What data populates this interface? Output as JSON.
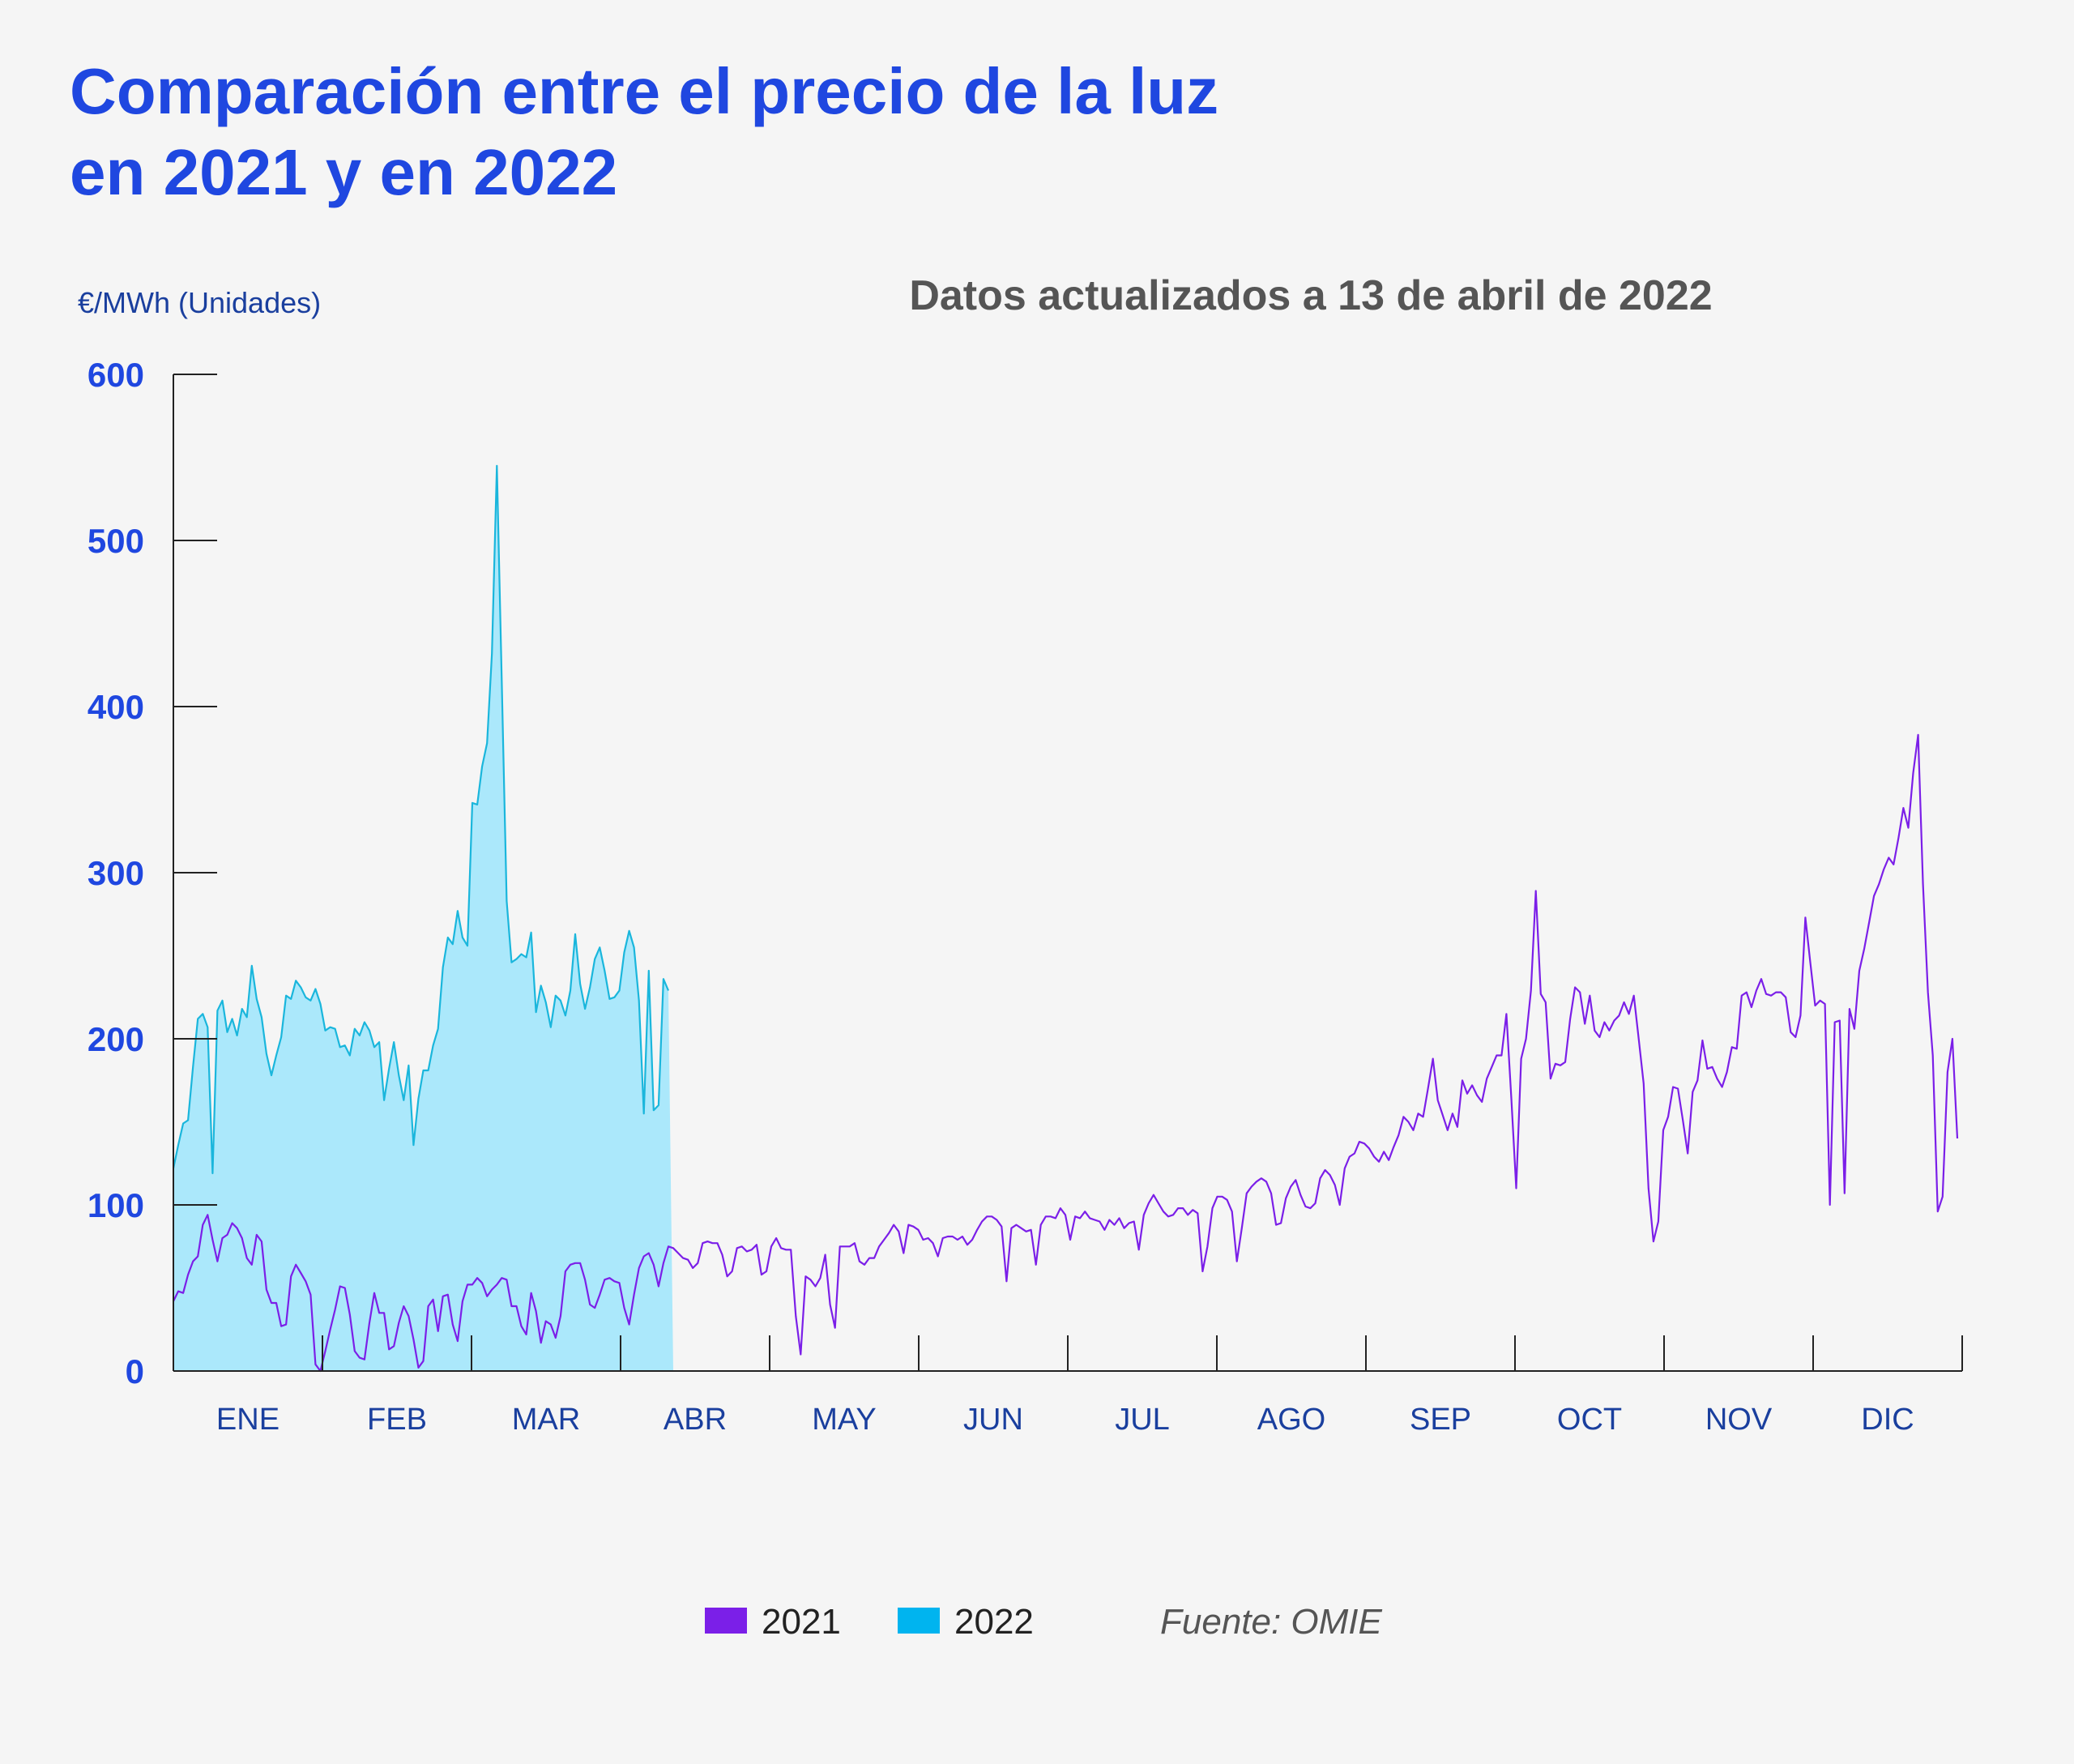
{
  "colors": {
    "background": "#f5f5f5",
    "title": "#1f47e0",
    "subtitle": "#555555",
    "axis_text": "#1a3f9e",
    "tick_value": "#1f47e0",
    "series_2021": "#7b1fe8",
    "series_2022_line": "#1ab6dc",
    "series_2022_fill": "#abe8fb",
    "legend_2022": "#00b4ef",
    "legend_text": "#222222",
    "source": "#555555",
    "axis_line": "#222222"
  },
  "chart_data": {
    "type": "area",
    "title": [
      "Comparación entre el precio de la luz",
      "en 2021 y en 2022"
    ],
    "subtitle": "Datos actualizados a 13 de abril de 2022",
    "ylabel": "€/MWh (Unidades)",
    "ylim": [
      0,
      600
    ],
    "yticks": [
      0,
      100,
      200,
      300,
      400,
      500,
      600
    ],
    "ytick_labels": [
      "0",
      "100",
      "200",
      "300",
      "400",
      "500",
      "600"
    ],
    "xlim": [
      0,
      365
    ],
    "months": [
      "ENE",
      "FEB",
      "MAR",
      "ABR",
      "MAY",
      "JUN",
      "JUL",
      "AGO",
      "SEP",
      "OCT",
      "NOV",
      "DIC"
    ],
    "x_unit": "día del año",
    "legend_position": "bottom-center",
    "grid": false,
    "source": "Fuente: OMIE",
    "series": [
      {
        "name": "2021",
        "style": "line",
        "x": [
          0,
          1,
          2,
          3,
          4,
          5,
          6,
          7,
          8,
          9,
          10,
          11,
          12,
          13,
          14,
          15,
          16,
          17,
          18,
          19,
          20,
          21,
          22,
          23,
          24,
          25,
          26,
          27,
          28,
          29,
          30,
          31,
          32,
          33,
          34,
          35,
          36,
          37,
          38,
          39,
          40,
          41,
          42,
          43,
          44,
          45,
          46,
          47,
          48,
          49,
          50,
          51,
          52,
          53,
          54,
          55,
          56,
          57,
          58,
          59,
          60,
          61,
          62,
          63,
          64,
          65,
          66,
          67,
          68,
          69,
          70,
          71,
          72,
          73,
          74,
          75,
          76,
          77,
          78,
          79,
          80,
          81,
          82,
          83,
          84,
          85,
          86,
          87,
          88,
          89,
          90,
          91,
          92,
          93,
          94,
          95,
          96,
          97,
          98,
          99,
          100,
          101,
          102,
          103,
          104,
          105,
          106,
          107,
          108,
          109,
          110,
          111,
          112,
          113,
          114,
          115,
          116,
          117,
          118,
          119,
          120,
          121,
          122,
          123,
          124,
          125,
          126,
          127,
          128,
          129,
          130,
          131,
          132,
          133,
          134,
          135,
          136,
          137,
          138,
          139,
          140,
          141,
          142,
          143,
          144,
          145,
          146,
          147,
          148,
          149,
          150,
          151,
          152,
          153,
          154,
          155,
          156,
          157,
          158,
          159,
          160,
          161,
          162,
          163,
          164,
          165,
          166,
          167,
          168,
          169,
          170,
          171,
          172,
          173,
          174,
          175,
          176,
          177,
          178,
          179,
          180,
          181,
          182,
          183,
          184,
          185,
          186,
          187,
          188,
          189,
          190,
          191,
          192,
          193,
          194,
          195,
          196,
          197,
          198,
          199,
          200,
          201,
          202,
          203,
          204,
          205,
          206,
          207,
          208,
          209,
          210,
          211,
          212,
          213,
          214,
          215,
          216,
          217,
          218,
          219,
          220,
          221,
          222,
          223,
          224,
          225,
          226,
          227,
          228,
          229,
          230,
          231,
          232,
          233,
          234,
          235,
          236,
          237,
          238,
          239,
          240,
          241,
          242,
          243,
          244,
          245,
          246,
          247,
          248,
          249,
          250,
          251,
          252,
          253,
          254,
          255,
          256,
          257,
          258,
          259,
          260,
          261,
          262,
          263,
          264,
          265,
          266,
          267,
          268,
          269,
          270,
          271,
          272,
          273,
          274,
          275,
          276,
          277,
          278,
          279,
          280,
          281,
          282,
          283,
          284,
          285,
          286,
          287,
          288,
          289,
          290,
          291,
          292,
          293,
          294,
          295,
          296,
          297,
          298,
          299,
          300,
          301,
          302,
          303,
          304,
          305,
          306,
          307,
          308,
          309,
          310,
          311,
          312,
          313,
          314,
          315,
          316,
          317,
          318,
          319,
          320,
          321,
          322,
          323,
          324,
          325,
          326,
          327,
          328,
          329,
          330,
          331,
          332,
          333,
          334,
          335,
          336,
          337,
          338,
          339,
          340,
          341,
          342,
          343,
          344,
          345,
          346,
          347,
          348,
          349,
          350,
          351,
          352,
          353,
          354,
          355,
          356,
          357,
          358,
          359,
          360,
          361,
          362,
          363,
          364
        ],
        "y": [
          42,
          48,
          47,
          58,
          66,
          69,
          88,
          94,
          79,
          66,
          80,
          82,
          89,
          86,
          80,
          68,
          64,
          82,
          78,
          49,
          41,
          41,
          27,
          28,
          57,
          64,
          59,
          54,
          46,
          4,
          0,
          12,
          25,
          37,
          51,
          50,
          34,
          12,
          8,
          7,
          29,
          47,
          35,
          35,
          13,
          15,
          29,
          39,
          33,
          19,
          2,
          6,
          39,
          43,
          24,
          45,
          46,
          28,
          18,
          42,
          52,
          52,
          56,
          53,
          45,
          49,
          52,
          56,
          55,
          39,
          39,
          27,
          22,
          47,
          36,
          17,
          30,
          28,
          20,
          33,
          60,
          64,
          65,
          65,
          55,
          40,
          38,
          46,
          55,
          56,
          54,
          53,
          38,
          28,
          46,
          62,
          69,
          71,
          64,
          51,
          65,
          75,
          74,
          71,
          68,
          67,
          62,
          65,
          77,
          78,
          77,
          77,
          70,
          57,
          60,
          74,
          75,
          72,
          73,
          76,
          58,
          60,
          75,
          80,
          74,
          73,
          73,
          33,
          10,
          57,
          55,
          51,
          56,
          70,
          40,
          26,
          75,
          75,
          75,
          77,
          66,
          64,
          68,
          68,
          75,
          79,
          83,
          88,
          84,
          71,
          88,
          87,
          85,
          79,
          80,
          77,
          69,
          80,
          81,
          81,
          79,
          81,
          76,
          79,
          85,
          90,
          93,
          93,
          91,
          87,
          54,
          86,
          88,
          86,
          84,
          85,
          64,
          88,
          93,
          93,
          92,
          98,
          94,
          79,
          93,
          92,
          96,
          92,
          91,
          90,
          85,
          91,
          88,
          92,
          86,
          89,
          90,
          73,
          94,
          101,
          106,
          101,
          96,
          93,
          94,
          98,
          98,
          94,
          97,
          95,
          60,
          75,
          98,
          105,
          105,
          103,
          96,
          66,
          86,
          107,
          111,
          114,
          116,
          114,
          107,
          88,
          89,
          104,
          111,
          115,
          106,
          99,
          98,
          101,
          116,
          121,
          118,
          112,
          100,
          122,
          129,
          131,
          138,
          137,
          134,
          129,
          126,
          132,
          127,
          135,
          142,
          153,
          150,
          145,
          155,
          153,
          170,
          188,
          163,
          154,
          145,
          155,
          147,
          175,
          167,
          172,
          166,
          162,
          176,
          183,
          190,
          190,
          215,
          164,
          110,
          188,
          200,
          229,
          289,
          227,
          222,
          176,
          185,
          184,
          186,
          212,
          231,
          228,
          209,
          226,
          205,
          201,
          210,
          205,
          211,
          214,
          222,
          215,
          226,
          200,
          173,
          110,
          78,
          90,
          145,
          153,
          171,
          170,
          151,
          131,
          168,
          175,
          199,
          182,
          183,
          176,
          171,
          180,
          195,
          194,
          226,
          228,
          219,
          229,
          236,
          227,
          226,
          228,
          228,
          225,
          204,
          201,
          214,
          273,
          246,
          220,
          223,
          221,
          100,
          210,
          211,
          107,
          218,
          206,
          241,
          254,
          270,
          286,
          293,
          302,
          309,
          305,
          321,
          339,
          327,
          360,
          383,
          293,
          228,
          190,
          96,
          105,
          180,
          200,
          140
        ]
      },
      {
        "name": "2022",
        "style": "area",
        "x": [
          0,
          1,
          2,
          3,
          4,
          5,
          6,
          7,
          8,
          9,
          10,
          11,
          12,
          13,
          14,
          15,
          16,
          17,
          18,
          19,
          20,
          21,
          22,
          23,
          24,
          25,
          26,
          27,
          28,
          29,
          30,
          31,
          32,
          33,
          34,
          35,
          36,
          37,
          38,
          39,
          40,
          41,
          42,
          43,
          44,
          45,
          46,
          47,
          48,
          49,
          50,
          51,
          52,
          53,
          54,
          55,
          56,
          57,
          58,
          59,
          60,
          61,
          62,
          63,
          64,
          65,
          66,
          67,
          68,
          69,
          70,
          71,
          72,
          73,
          74,
          75,
          76,
          77,
          78,
          79,
          80,
          81,
          82,
          83,
          84,
          85,
          86,
          87,
          88,
          89,
          90,
          91,
          92,
          93,
          94,
          95,
          96,
          97,
          98,
          99,
          100,
          101,
          102
        ],
        "y": [
          122,
          136,
          149,
          151,
          183,
          212,
          215,
          207,
          119,
          217,
          223,
          204,
          212,
          202,
          218,
          213,
          244,
          224,
          213,
          191,
          178,
          190,
          201,
          226,
          224,
          235,
          231,
          225,
          223,
          230,
          221,
          205,
          207,
          206,
          195,
          196,
          190,
          206,
          202,
          210,
          205,
          195,
          198,
          163,
          182,
          198,
          178,
          163,
          184,
          136,
          164,
          181,
          181,
          196,
          206,
          243,
          261,
          257,
          277,
          261,
          256,
          342,
          341,
          364,
          378,
          432,
          545,
          416,
          283,
          246,
          248,
          251,
          249,
          264,
          216,
          232,
          222,
          207,
          226,
          223,
          214,
          229,
          263,
          233,
          218,
          231,
          248,
          255,
          241,
          224,
          225,
          229,
          252,
          265,
          255,
          223,
          155,
          241,
          157,
          160,
          236,
          229,
          0
        ],
        "line_end_index": 101
      }
    ]
  }
}
